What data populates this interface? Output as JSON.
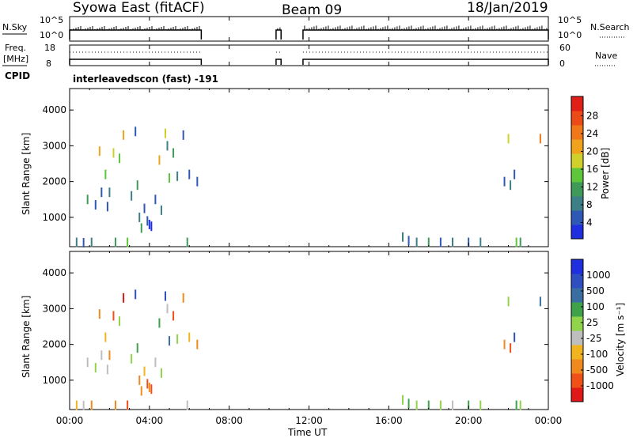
{
  "header": {
    "title": "Syowa East (fitACF)",
    "beam": "Beam 09",
    "date": "18/Jan/2019"
  },
  "mode_label": "interleavedscon (fast) -191",
  "colors": {
    "power": [
      "#1f2fe0",
      "#2f57b5",
      "#3d7f86",
      "#3f9a5a",
      "#5ec63a",
      "#cfd12a",
      "#f0a21c",
      "#f07818",
      "#ec4a16",
      "#e02018"
    ],
    "velocity": [
      "#e01818",
      "#f05018",
      "#f08a1c",
      "#f2b41e",
      "#bebebe",
      "#8fd44a",
      "#3fa24a",
      "#3a6ea0",
      "#2f4fc0",
      "#1f2fe0"
    ]
  },
  "chart_data": [
    {
      "type": "line",
      "name": "nsky-nsearch-panel",
      "left_label": "N.Sky",
      "right_label": "N.Search",
      "left_ticks": [
        "10^5",
        "10^0"
      ],
      "right_ticks": [
        "10^5",
        "10^0"
      ],
      "segments_hours": [
        [
          0.0,
          6.6
        ],
        [
          10.35,
          10.6
        ],
        [
          11.7,
          24.0
        ]
      ],
      "baseline_level": 1
    },
    {
      "type": "line",
      "name": "freq-nave-panel",
      "left_label": "Freq. [MHz]",
      "right_label": "Nave",
      "left_ticks": [
        "18",
        "8"
      ],
      "right_ticks": [
        "60",
        "0"
      ],
      "freq_mhz": 10.5,
      "nave": 40
    },
    {
      "type": "heatmap",
      "name": "power-panel",
      "ylabel": "Slant Range [km]",
      "xlabel": "",
      "xlim_hours": [
        0,
        24
      ],
      "ylim_km": [
        180,
        4600
      ],
      "yticks": [
        "1000",
        "2000",
        "3000",
        "4000"
      ],
      "colorbar_label": "Power [dB]",
      "colorbar_ticks": [
        "4",
        "8",
        "12",
        "16",
        "20",
        "24",
        "28"
      ],
      "points": [
        [
          0.35,
          300,
          2
        ],
        [
          0.7,
          290,
          1
        ],
        [
          0.9,
          1500,
          3
        ],
        [
          1.1,
          300,
          2
        ],
        [
          1.3,
          1350,
          1
        ],
        [
          1.5,
          2850,
          6
        ],
        [
          1.6,
          1700,
          1
        ],
        [
          1.8,
          2200,
          4
        ],
        [
          1.9,
          1300,
          1
        ],
        [
          2.0,
          1700,
          2
        ],
        [
          2.2,
          2800,
          5
        ],
        [
          2.3,
          300,
          3
        ],
        [
          2.5,
          2650,
          4
        ],
        [
          2.7,
          3300,
          6
        ],
        [
          2.9,
          300,
          4
        ],
        [
          3.1,
          1600,
          2
        ],
        [
          3.3,
          3400,
          1
        ],
        [
          3.4,
          1900,
          3
        ],
        [
          3.5,
          1000,
          2
        ],
        [
          3.6,
          700,
          3
        ],
        [
          3.75,
          1250,
          1
        ],
        [
          3.9,
          900,
          1
        ],
        [
          4.0,
          800,
          0
        ],
        [
          4.1,
          750,
          0
        ],
        [
          4.3,
          1500,
          1
        ],
        [
          4.5,
          2600,
          6
        ],
        [
          4.6,
          1200,
          2
        ],
        [
          4.8,
          3350,
          5
        ],
        [
          4.9,
          3000,
          2
        ],
        [
          5.0,
          2100,
          4
        ],
        [
          5.2,
          2800,
          3
        ],
        [
          5.4,
          2150,
          2
        ],
        [
          5.7,
          3300,
          1
        ],
        [
          5.9,
          300,
          3
        ],
        [
          6.0,
          2200,
          1
        ],
        [
          6.4,
          2000,
          1
        ],
        [
          16.7,
          450,
          2
        ],
        [
          17.0,
          350,
          1
        ],
        [
          17.4,
          300,
          2
        ],
        [
          18.0,
          300,
          3
        ],
        [
          18.6,
          300,
          1
        ],
        [
          19.2,
          300,
          2
        ],
        [
          20.0,
          300,
          1
        ],
        [
          20.6,
          300,
          2
        ],
        [
          21.8,
          2000,
          1
        ],
        [
          22.0,
          3200,
          5
        ],
        [
          22.1,
          1900,
          2
        ],
        [
          22.3,
          2200,
          1
        ],
        [
          22.4,
          300,
          4
        ],
        [
          22.6,
          300,
          3
        ],
        [
          23.6,
          3200,
          7
        ]
      ]
    },
    {
      "type": "heatmap",
      "name": "velocity-panel",
      "ylabel": "Slant Range [km]",
      "xlabel": "Time UT",
      "xlim_hours": [
        0,
        24
      ],
      "ylim_km": [
        180,
        4600
      ],
      "yticks": [
        "1000",
        "2000",
        "3000",
        "4000"
      ],
      "xticks": [
        "00:00",
        "04:00",
        "08:00",
        "12:00",
        "16:00",
        "20:00",
        "00:00"
      ],
      "colorbar_label": "Velocity [m s⁻¹]",
      "colorbar_ticks": [
        "1000",
        "500",
        "100",
        "25",
        "-25",
        "-100",
        "-500",
        "-1000"
      ],
      "points": [
        [
          0.35,
          300,
          3
        ],
        [
          0.7,
          290,
          4
        ],
        [
          0.9,
          1500,
          4
        ],
        [
          1.1,
          300,
          2
        ],
        [
          1.3,
          1350,
          5
        ],
        [
          1.5,
          2850,
          2
        ],
        [
          1.6,
          1700,
          4
        ],
        [
          1.8,
          2200,
          3
        ],
        [
          1.9,
          1300,
          4
        ],
        [
          2.0,
          1700,
          2
        ],
        [
          2.2,
          2800,
          1
        ],
        [
          2.3,
          300,
          2
        ],
        [
          2.5,
          2650,
          5
        ],
        [
          2.7,
          3300,
          0
        ],
        [
          2.9,
          300,
          1
        ],
        [
          3.1,
          1600,
          5
        ],
        [
          3.3,
          3400,
          8
        ],
        [
          3.4,
          1900,
          6
        ],
        [
          3.5,
          1000,
          2
        ],
        [
          3.6,
          700,
          2
        ],
        [
          3.75,
          1250,
          3
        ],
        [
          3.9,
          900,
          1
        ],
        [
          4.0,
          800,
          2
        ],
        [
          4.1,
          750,
          1
        ],
        [
          4.3,
          1500,
          4
        ],
        [
          4.5,
          2600,
          6
        ],
        [
          4.6,
          1200,
          5
        ],
        [
          4.8,
          3350,
          8
        ],
        [
          4.9,
          3000,
          4
        ],
        [
          5.0,
          2100,
          7
        ],
        [
          5.2,
          2800,
          1
        ],
        [
          5.4,
          2150,
          5
        ],
        [
          5.7,
          3300,
          2
        ],
        [
          5.9,
          300,
          4
        ],
        [
          6.0,
          2200,
          3
        ],
        [
          6.4,
          2000,
          2
        ],
        [
          16.7,
          450,
          5
        ],
        [
          17.0,
          350,
          6
        ],
        [
          17.4,
          300,
          5
        ],
        [
          18.0,
          300,
          6
        ],
        [
          18.6,
          300,
          5
        ],
        [
          19.2,
          300,
          4
        ],
        [
          20.0,
          300,
          6
        ],
        [
          20.6,
          300,
          5
        ],
        [
          21.8,
          2000,
          2
        ],
        [
          22.0,
          3200,
          5
        ],
        [
          22.1,
          1900,
          1
        ],
        [
          22.3,
          2200,
          8
        ],
        [
          22.4,
          300,
          6
        ],
        [
          22.6,
          300,
          5
        ],
        [
          23.6,
          3200,
          7
        ]
      ]
    }
  ]
}
